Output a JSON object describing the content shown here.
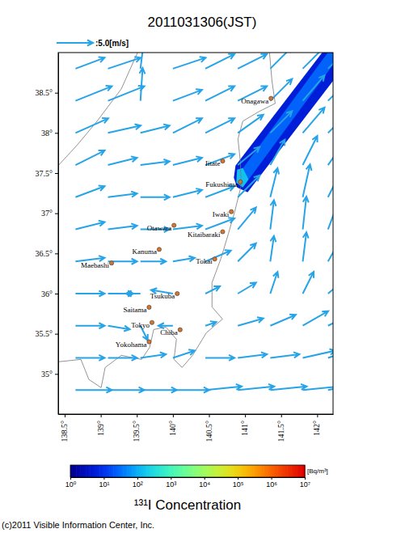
{
  "chart_data": {
    "type": "map",
    "title": "2011031306(JST)",
    "xlim": [
      138.41,
      142.22
    ],
    "ylim": [
      34.5,
      39.0
    ],
    "xticks": [
      {
        "value": 138.5,
        "label": "138.5°"
      },
      {
        "value": 139,
        "label": "139°"
      },
      {
        "value": 139.5,
        "label": "139.5°"
      },
      {
        "value": 140,
        "label": "140°"
      },
      {
        "value": 140.5,
        "label": "140.5°"
      },
      {
        "value": 141,
        "label": "141°"
      },
      {
        "value": 141.5,
        "label": "141.5°"
      },
      {
        "value": 142,
        "label": "142°"
      }
    ],
    "yticks": [
      {
        "value": 35,
        "label": "35°"
      },
      {
        "value": 35.5,
        "label": "35.5°"
      },
      {
        "value": 36,
        "label": "36°"
      },
      {
        "value": 36.5,
        "label": "36.5°"
      },
      {
        "value": 37,
        "label": "37°"
      },
      {
        "value": 37.5,
        "label": "37.5°"
      },
      {
        "value": 38,
        "label": "38°"
      },
      {
        "value": 38.5,
        "label": "38.5°"
      }
    ],
    "wind": {
      "scale": {
        "value": 5,
        "label": ":5.0[m/s]"
      },
      "lons": [
        138.65,
        139.1,
        139.55,
        140.0,
        140.45,
        140.9,
        141.35,
        141.8,
        142.15
      ],
      "lats": [
        38.8,
        38.4,
        38.0,
        37.6,
        37.2,
        36.8,
        36.4,
        36.0,
        35.6,
        35.2,
        34.8
      ],
      "u": [
        [
          4,
          4.5,
          0.5,
          4.5,
          4,
          4,
          3,
          3,
          3
        ],
        [
          5,
          5,
          0.3,
          4,
          4,
          4,
          3,
          3,
          3
        ],
        [
          4.5,
          4.5,
          4,
          4,
          4,
          3.5,
          3,
          3,
          3
        ],
        [
          4,
          4,
          4,
          4,
          4,
          3,
          2,
          2,
          2.5
        ],
        [
          4,
          4,
          4,
          4,
          4,
          3,
          1,
          1,
          2
        ],
        [
          4,
          4,
          4,
          4,
          4,
          2.5,
          0.5,
          0.5,
          1.5
        ],
        [
          4,
          4,
          3.5,
          3,
          3.5,
          2.5,
          0.5,
          0.5,
          2
        ],
        [
          4,
          3.5,
          -2,
          -3,
          2,
          2.5,
          1,
          1.5,
          3
        ],
        [
          4,
          3,
          1,
          -2,
          1.5,
          3.5,
          3.5,
          3.5,
          4
        ],
        [
          4,
          4,
          3.5,
          3,
          4,
          4,
          4,
          4.5,
          4.5
        ],
        [
          5,
          5,
          5,
          5,
          5,
          5,
          5,
          5,
          5
        ]
      ],
      "v": [
        [
          1.5,
          1.5,
          4,
          1.5,
          2,
          2,
          3,
          3,
          3
        ],
        [
          2,
          2,
          4.5,
          1.5,
          2,
          2,
          3,
          3.5,
          3
        ],
        [
          2,
          1,
          1,
          2,
          2,
          2.5,
          3,
          3.5,
          3
        ],
        [
          2,
          1,
          0.5,
          1,
          1.5,
          2.5,
          3.5,
          4,
          3.5
        ],
        [
          1.5,
          0.5,
          0,
          1,
          1.5,
          3,
          4,
          4.5,
          4
        ],
        [
          1,
          0.5,
          0,
          0.5,
          1.5,
          3,
          4,
          4.5,
          4
        ],
        [
          0.5,
          0,
          0,
          0.5,
          1.5,
          2.5,
          3.5,
          4,
          3.5
        ],
        [
          0,
          0,
          0,
          0.5,
          1,
          1.5,
          3,
          3,
          2.5
        ],
        [
          0,
          -0.5,
          -2,
          0,
          0.5,
          1,
          1.5,
          2,
          2
        ],
        [
          0,
          0,
          0.5,
          1,
          0,
          0.5,
          0.5,
          1,
          1.5
        ],
        [
          0,
          0,
          0,
          0,
          0.5,
          0.5,
          0.5,
          0.5,
          1
        ]
      ]
    },
    "plume": [
      {
        "value": 5,
        "lon": [
          140.868,
          142.069,
          142.22,
          142.22,
          141.036,
          140.89,
          140.845
        ],
        "lat": [
          37.593,
          39.0,
          39.0,
          38.648,
          37.261,
          37.322,
          37.442
        ]
      },
      {
        "value": 25,
        "lon": [
          140.924,
          142.147,
          142.22,
          142.22,
          141.003
        ],
        "lat": [
          37.503,
          39.0,
          39.0,
          38.849,
          37.362
        ]
      },
      {
        "value": 150,
        "lon": [
          140.89,
          140.969,
          141.048,
          140.969,
          140.879
        ],
        "lat": [
          37.543,
          37.563,
          37.422,
          37.322,
          37.382
        ]
      }
    ],
    "coastline": [
      {
        "lon": [
          141.339,
          141.373,
          141.418,
          141.193,
          140.969,
          140.902,
          140.935,
          140.946,
          140.857,
          140.767,
          140.666,
          140.542,
          140.542,
          140.688,
          140.464,
          140.273,
          140.127,
          140.015,
          140.049,
          139.903,
          139.734,
          139.678,
          139.566,
          139.285,
          139.061,
          139.005,
          138.836,
          138.724,
          138.41
        ],
        "lat": [
          39.0,
          38.648,
          38.367,
          38.266,
          38.146,
          37.925,
          37.643,
          37.342,
          37.02,
          36.739,
          36.437,
          36.136,
          35.834,
          35.683,
          35.513,
          35.231,
          35.08,
          35.181,
          35.432,
          35.583,
          35.553,
          35.332,
          35.181,
          35.231,
          35.08,
          34.829,
          34.93,
          35.181,
          35.151
        ]
      },
      {
        "lon": [
          139.51,
          139.285,
          138.949,
          138.668,
          138.41
        ],
        "lat": [
          39.0,
          38.548,
          38.146,
          37.844,
          37.593
        ]
      }
    ],
    "cities": [
      {
        "name": "Onagawa",
        "lon": 141.36,
        "lat": 38.43
      },
      {
        "name": "Iitate",
        "lon": 140.69,
        "lat": 37.65
      },
      {
        "name": "Fukushima",
        "lon": 140.935,
        "lat": 37.39
      },
      {
        "name": "Iwaki",
        "lon": 140.81,
        "lat": 37.02
      },
      {
        "name": "Otawara",
        "lon": 140.015,
        "lat": 36.85
      },
      {
        "name": "Kitaibaraki",
        "lon": 140.69,
        "lat": 36.77
      },
      {
        "name": "Kanuma",
        "lon": 139.81,
        "lat": 36.55
      },
      {
        "name": "Tokai",
        "lon": 140.58,
        "lat": 36.43
      },
      {
        "name": "Maebashi",
        "lon": 139.15,
        "lat": 36.38
      },
      {
        "name": "Tsukuba",
        "lon": 140.06,
        "lat": 36.0
      },
      {
        "name": "Saitama",
        "lon": 139.67,
        "lat": 35.83
      },
      {
        "name": "Tokyo",
        "lon": 139.71,
        "lat": 35.64
      },
      {
        "name": "Chiba",
        "lon": 140.1,
        "lat": 35.55
      },
      {
        "name": "Yokohama",
        "lon": 139.67,
        "lat": 35.4
      }
    ],
    "colorbar": {
      "title": "¹³¹I Concentration",
      "unit": "[Bq/m³]",
      "log": true,
      "lim": [
        1,
        10000000
      ],
      "ticks": [
        {
          "value": 1,
          "label": "10⁰"
        },
        {
          "value": 10,
          "label": "10¹"
        },
        {
          "value": 100,
          "label": "10²"
        },
        {
          "value": 1000,
          "label": "10³"
        },
        {
          "value": 10000,
          "label": "10⁴"
        },
        {
          "value": 100000,
          "label": "10⁵"
        },
        {
          "value": 1000000,
          "label": "10⁶"
        },
        {
          "value": 10000000,
          "label": "10⁷"
        }
      ]
    },
    "copyright": "(c)2011 Visible Information Center, Inc."
  }
}
